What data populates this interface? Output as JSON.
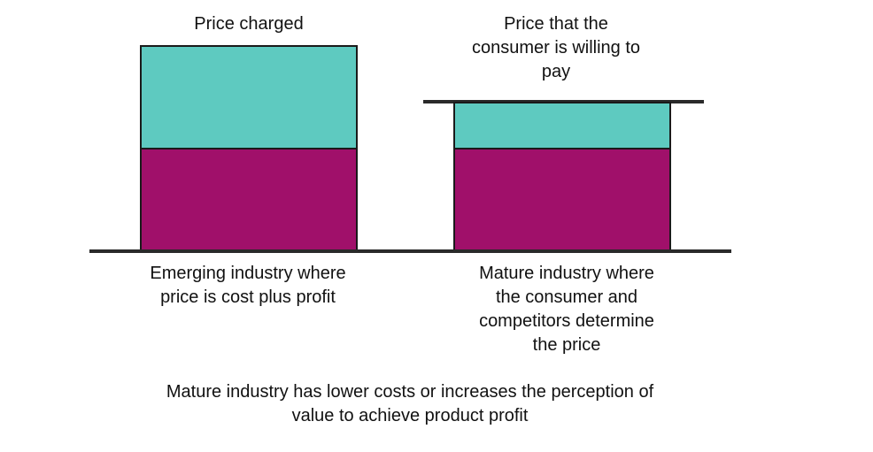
{
  "left_column": {
    "top_label": "Price charged",
    "bottom_label": "Emerging industry where\nprice is cost plus profit"
  },
  "right_column": {
    "top_label": "Price that the\nconsumer is willing to\npay",
    "bottom_label": "Mature industry where\nthe consumer and\ncompetitors determine\nthe price"
  },
  "footer": "Mature industry has lower costs or increases the perception of\nvalue to achieve product profit",
  "colors": {
    "profit": "#5ecac0",
    "cost": "#a0106a",
    "line": "#2a2a2a"
  }
}
